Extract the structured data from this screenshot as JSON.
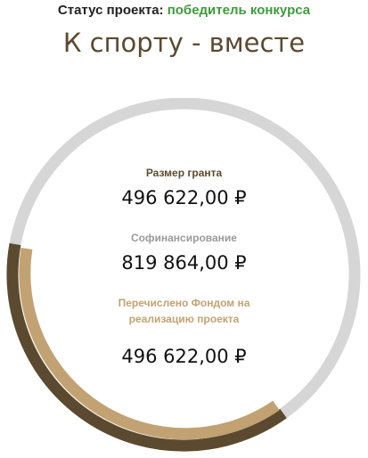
{
  "status": {
    "label": "Статус проекта:",
    "value": "победитель конкурса"
  },
  "project": {
    "title": "К спорту - вместе"
  },
  "stats": {
    "grant": {
      "label": "Размер гранта",
      "value": "496 622,00 ₽"
    },
    "cofinancing": {
      "label": "Софинансирование",
      "value": "819 864,00 ₽"
    },
    "transferred": {
      "label_line1": "Перечислено Фондом на",
      "label_line2": "реализацию проекта",
      "value": "496 622,00 ₽"
    }
  },
  "colors": {
    "status_value": "#3e9b3a",
    "title": "#5b4a30",
    "track": "#d6d6d6",
    "grant_arc": "#5b4a30",
    "transferred_arc": "#c2a272",
    "grant_label": "#5b4a30",
    "cofinancing_label": "#9a9a9a",
    "transferred_label": "#c2a272"
  }
}
